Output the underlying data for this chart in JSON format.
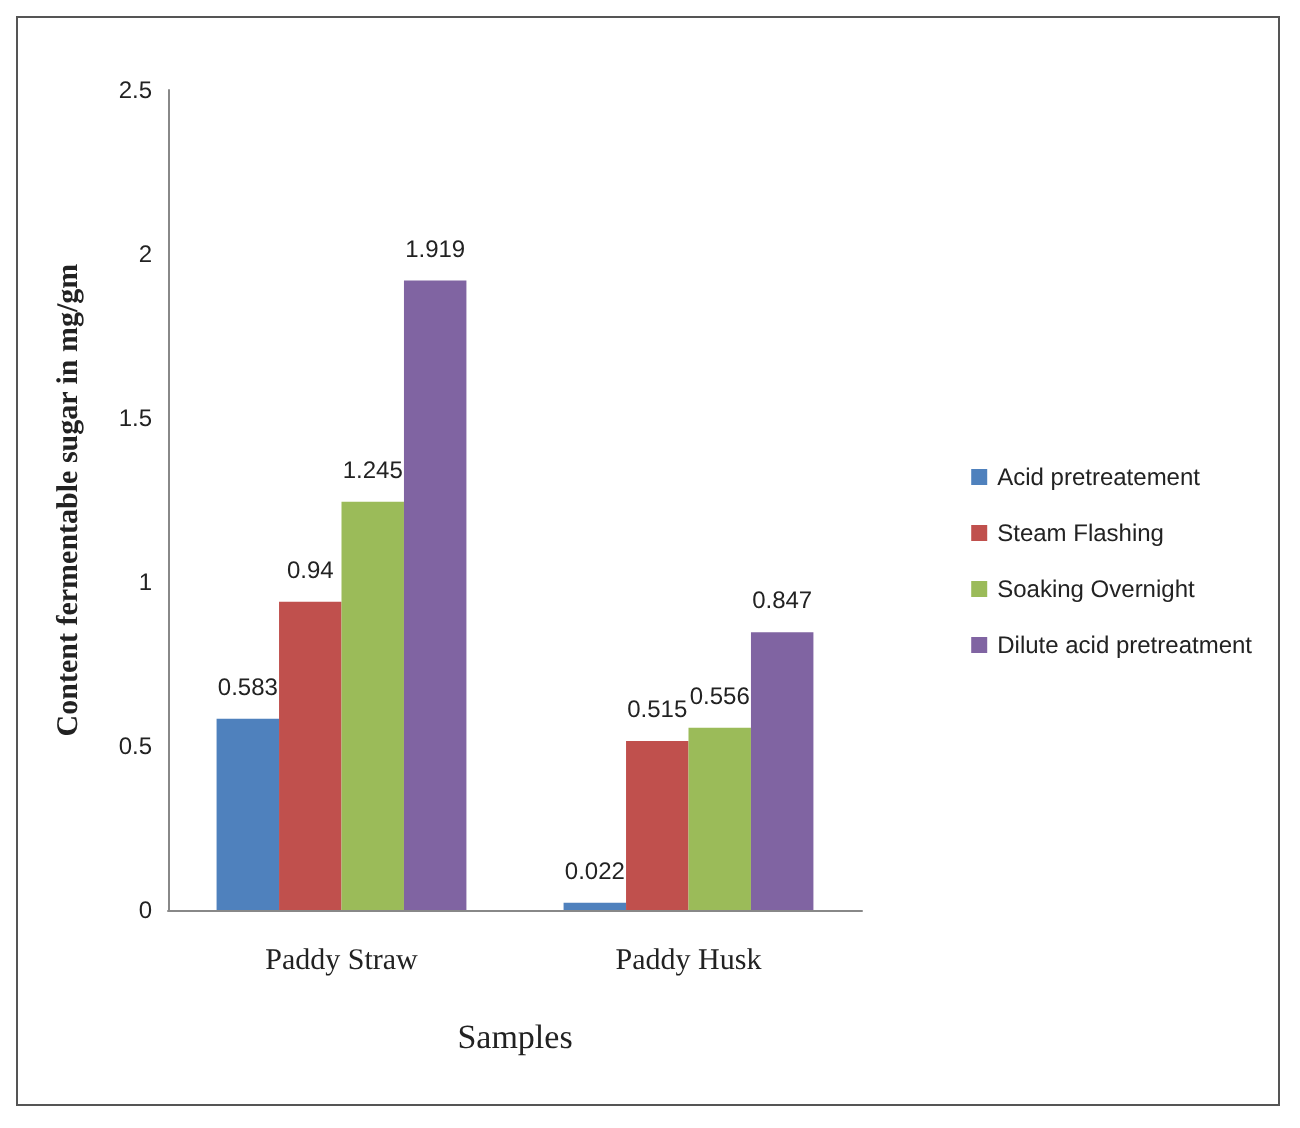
{
  "chart_data": {
    "type": "bar",
    "xlabel": "Samples",
    "ylabel": "Content fermentable sugar in mg/gm",
    "categories": [
      "Paddy Straw",
      "Paddy Husk"
    ],
    "series": [
      {
        "name": "Acid pretreatement",
        "color": "#4f81bd",
        "values": [
          0.583,
          0.022
        ]
      },
      {
        "name": "Steam Flashing",
        "color": "#c0504d",
        "values": [
          0.94,
          0.515
        ]
      },
      {
        "name": "Soaking Overnight",
        "color": "#9bbb59",
        "values": [
          1.245,
          0.556
        ]
      },
      {
        "name": "Dilute acid pretreatment",
        "color": "#8064a2",
        "values": [
          1.919,
          0.847
        ]
      }
    ],
    "ylim": [
      0,
      2.5
    ],
    "yticks": [
      0,
      0.5,
      1,
      1.5,
      2,
      2.5
    ],
    "grid": false,
    "legend": "right",
    "data_labels": true
  }
}
